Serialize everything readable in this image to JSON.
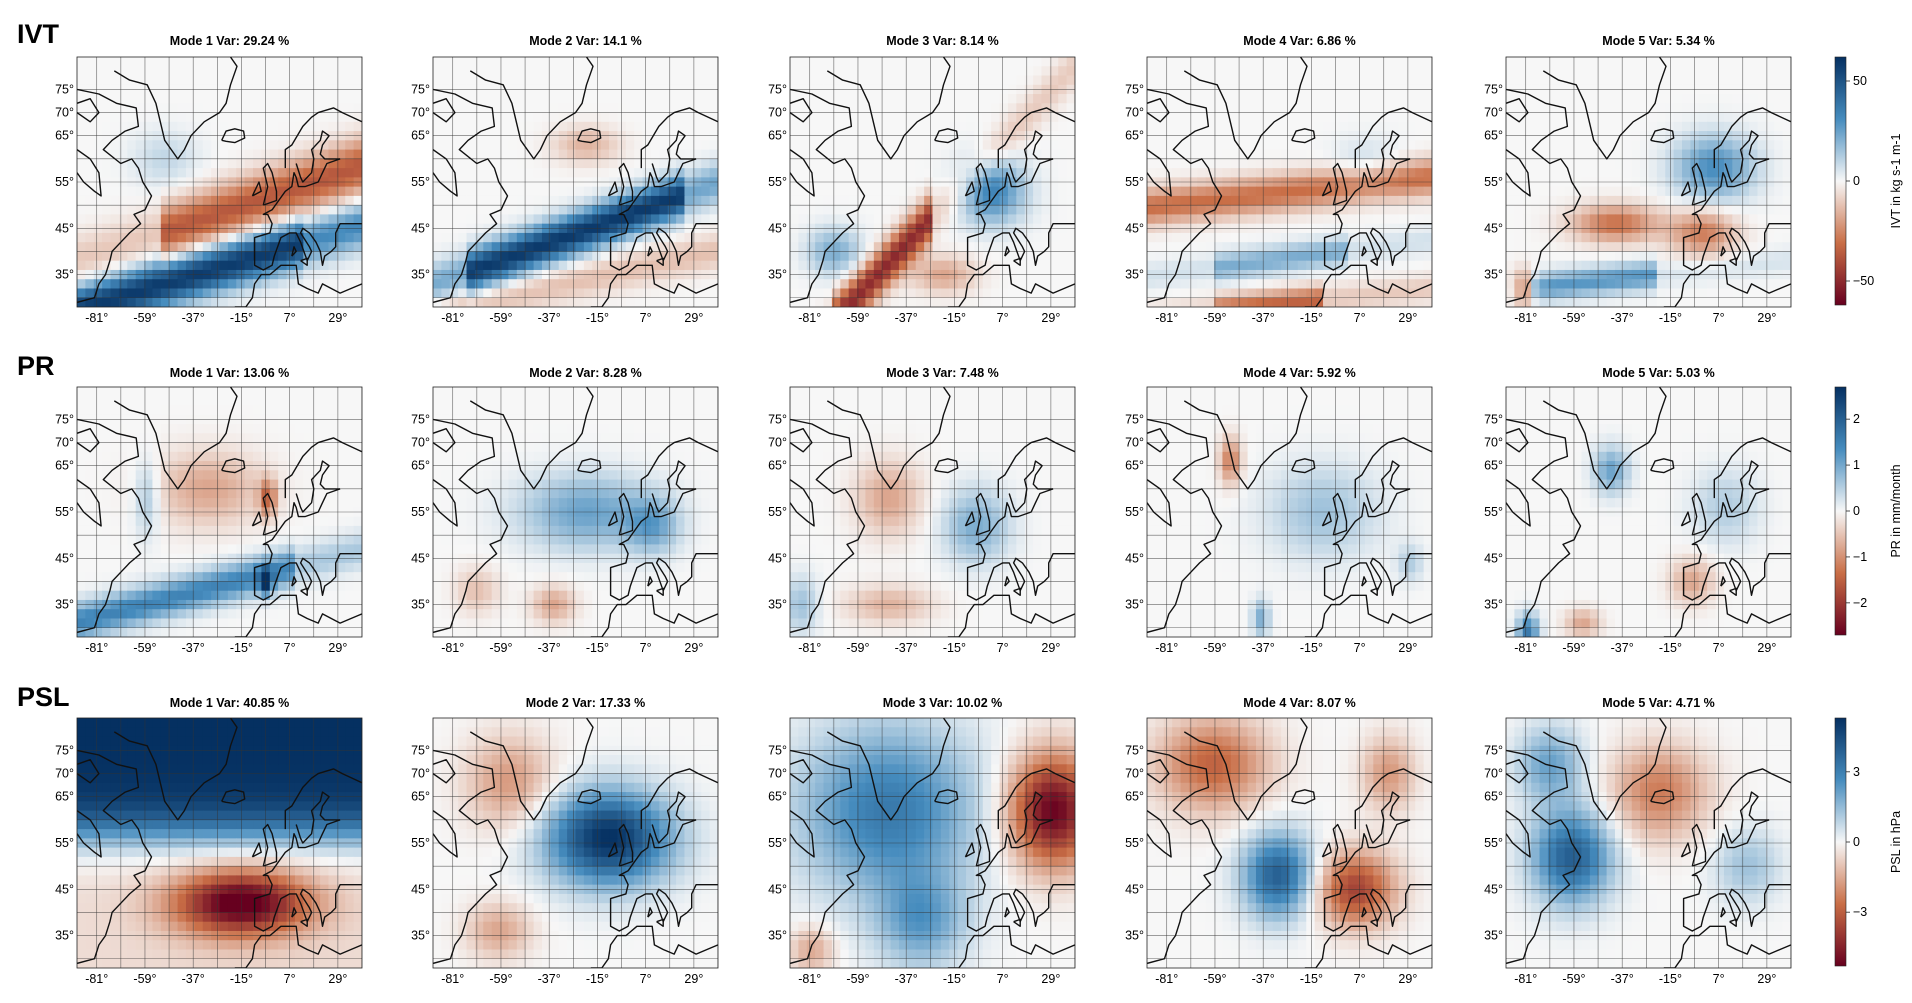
{
  "chart_data": {
    "type": "heatmap",
    "grid_lines": true,
    "x_ticks": [
      "-81°",
      "-59°",
      "-37°",
      "-15°",
      "7°",
      "29°"
    ],
    "y_ticks": [
      "35°",
      "45°",
      "55°",
      "65°",
      "70°",
      "75°"
    ],
    "color_low": "#67001f",
    "color_mid": "#f7f7f7",
    "color_high": "#053061",
    "rows": [
      {
        "label": "IVT",
        "colorbar_label": "IVT in kg s-1 m-1",
        "colorbar_ticks": [
          "50",
          "0",
          "−50"
        ],
        "colorbar_range": [
          -62,
          62
        ],
        "panels": [
          {
            "title": "Mode 1 Var: 29.24 %"
          },
          {
            "title": "Mode 2 Var: 14.1 %"
          },
          {
            "title": "Mode 3 Var: 8.14 %"
          },
          {
            "title": "Mode 4 Var: 6.86 %"
          },
          {
            "title": "Mode 5 Var: 5.34 %"
          }
        ]
      },
      {
        "label": "PR",
        "colorbar_label": "PR in mm/month",
        "colorbar_ticks": [
          "2",
          "1",
          "0",
          "−1",
          "−2"
        ],
        "colorbar_range": [
          -2.7,
          2.7
        ],
        "panels": [
          {
            "title": "Mode 1 Var: 13.06 %"
          },
          {
            "title": "Mode 2 Var: 8.28 %"
          },
          {
            "title": "Mode 3 Var: 7.48 %"
          },
          {
            "title": "Mode 4 Var: 5.92 %"
          },
          {
            "title": "Mode 5 Var: 5.03 %"
          }
        ]
      },
      {
        "label": "PSL",
        "colorbar_label": "PSL in hPa",
        "colorbar_ticks": [
          "3",
          "0",
          "−3"
        ],
        "colorbar_range": [
          -5.3,
          5.3
        ],
        "panels": [
          {
            "title": "Mode 1 Var: 40.85 %"
          },
          {
            "title": "Mode 2 Var: 17.33 %"
          },
          {
            "title": "Mode 3 Var: 10.02 %"
          },
          {
            "title": "Mode 4 Var: 8.07 %"
          },
          {
            "title": "Mode 5 Var: 4.71 %"
          }
        ]
      }
    ]
  }
}
